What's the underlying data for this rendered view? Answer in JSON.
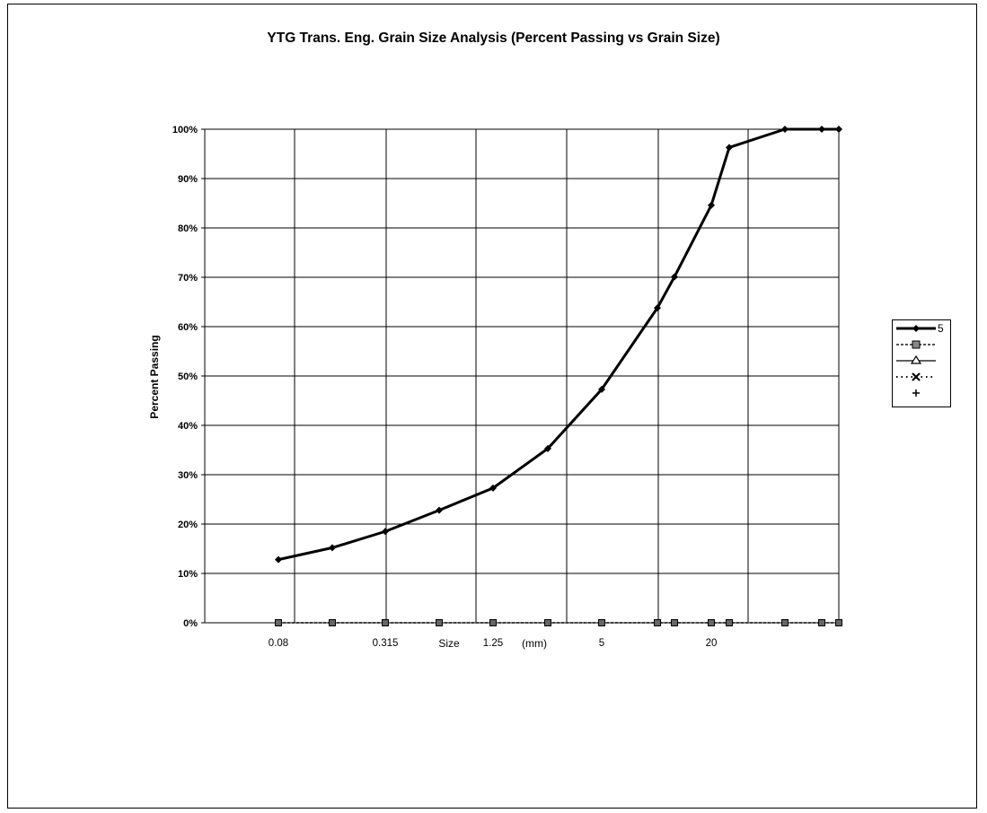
{
  "chart_data": {
    "type": "line",
    "title": "YTG Trans. Eng. Grain Size Analysis (Percent Passing vs Grain Size)",
    "ylabel": "Percent Passing",
    "xlabel_parts": [
      "Size",
      "(mm)"
    ],
    "ylim": [
      0,
      100
    ],
    "yticks": [
      "0%",
      "10%",
      "20%",
      "30%",
      "40%",
      "50%",
      "60%",
      "70%",
      "80%",
      "90%",
      "100%"
    ],
    "xtick_labels": [
      {
        "label": "0.08",
        "index": 0
      },
      {
        "label": "0.315",
        "index": 2
      },
      {
        "label": "1.25",
        "index": 4
      },
      {
        "label": "5",
        "index": 6
      },
      {
        "label": "20",
        "index": 9
      }
    ],
    "grid": true,
    "legend_position": "right",
    "series": [
      {
        "name": "5",
        "marker": "diamond",
        "style": "solid-bold",
        "points": [
          [
            0.08,
            12.8
          ],
          [
            0.16,
            15.2
          ],
          [
            0.315,
            18.5
          ],
          [
            0.63,
            22.8
          ],
          [
            1.25,
            27.3
          ],
          [
            2.5,
            35.3
          ],
          [
            5,
            47.3
          ],
          [
            10,
            63.8
          ],
          [
            12.5,
            70.1
          ],
          [
            16,
            84.6
          ],
          [
            20,
            96.3
          ],
          [
            28,
            100
          ],
          [
            40,
            100
          ],
          [
            50,
            100
          ]
        ]
      },
      {
        "name": "",
        "marker": "square",
        "style": "dashed",
        "points": [
          [
            0.08,
            0
          ],
          [
            0.16,
            0
          ],
          [
            0.315,
            0
          ],
          [
            0.63,
            0
          ],
          [
            1.25,
            0
          ],
          [
            2.5,
            0
          ],
          [
            5,
            0
          ],
          [
            10,
            0
          ],
          [
            12.5,
            0
          ],
          [
            16,
            0
          ],
          [
            20,
            0
          ],
          [
            28,
            0
          ],
          [
            40,
            0
          ],
          [
            50,
            0
          ]
        ]
      },
      {
        "name": "",
        "marker": "triangle",
        "style": "solid",
        "points": []
      },
      {
        "name": "",
        "marker": "x",
        "style": "dotted",
        "points": []
      },
      {
        "name": "",
        "marker": "plus",
        "style": "none",
        "points": []
      }
    ]
  }
}
